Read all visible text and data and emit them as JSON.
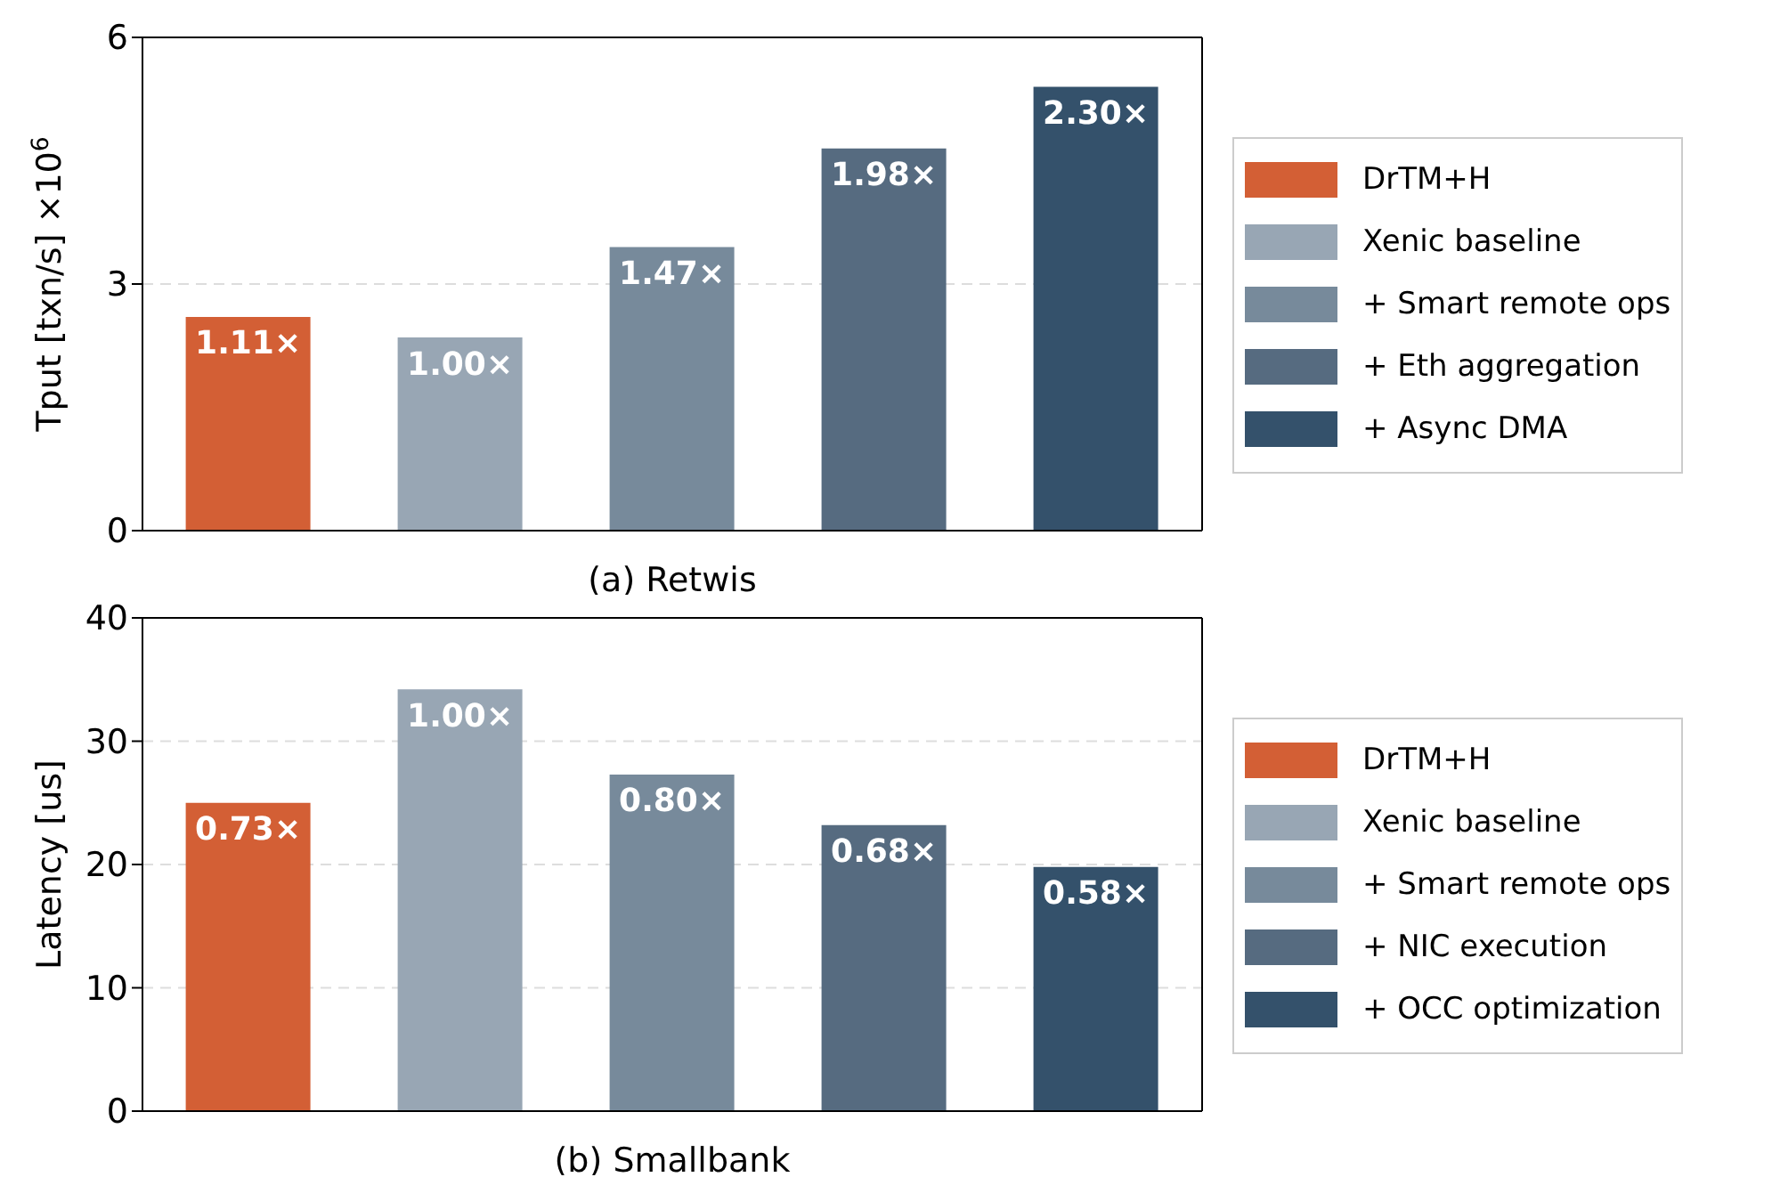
{
  "chart_data": [
    {
      "type": "bar",
      "xlabel": "(a) Retwis",
      "ylabel": "Tput [txn/s] ×10$^{6}$",
      "categories": [
        null,
        null,
        null,
        null,
        null
      ],
      "ylim": [
        0,
        6
      ],
      "yticks": [
        0,
        3,
        6
      ],
      "grid": "y",
      "legend": "right",
      "annotations": [
        "1.11×",
        "1.00×",
        "1.47×",
        "1.98×",
        "2.30×"
      ],
      "series": [
        {
          "name": "DrTM+H",
          "color": "#d35f35",
          "values": [
            2.6,
            null,
            null,
            null,
            null
          ]
        },
        {
          "name": "Xenic baseline",
          "color": "#98a6b4",
          "values": [
            null,
            2.35,
            null,
            null,
            null
          ]
        },
        {
          "name": "+ Smart remote ops",
          "color": "#778a9b",
          "values": [
            null,
            null,
            3.45,
            null,
            null
          ]
        },
        {
          "name": "+ Eth aggregation",
          "color": "#566b80",
          "values": [
            null,
            null,
            null,
            4.65,
            null
          ]
        },
        {
          "name": "+ Async DMA",
          "color": "#34516b",
          "values": [
            null,
            null,
            null,
            null,
            5.4
          ]
        }
      ]
    },
    {
      "type": "bar",
      "xlabel": "(b) Smallbank",
      "ylabel": "Latency [us]",
      "categories": [
        null,
        null,
        null,
        null,
        null
      ],
      "ylim": [
        0,
        40
      ],
      "yticks": [
        0,
        10,
        20,
        30,
        40
      ],
      "grid": "y",
      "legend": "right",
      "annotations": [
        "0.73×",
        "1.00×",
        "0.80×",
        "0.68×",
        "0.58×"
      ],
      "series": [
        {
          "name": "DrTM+H",
          "color": "#d35f35",
          "values": [
            25,
            null,
            null,
            null,
            null
          ]
        },
        {
          "name": "Xenic baseline",
          "color": "#98a6b4",
          "values": [
            null,
            34.2,
            null,
            null,
            null
          ]
        },
        {
          "name": "+ Smart remote ops",
          "color": "#778a9b",
          "values": [
            null,
            null,
            27.3,
            null,
            null
          ]
        },
        {
          "name": "+ NIC execution",
          "color": "#566b80",
          "values": [
            null,
            null,
            null,
            23.2,
            null
          ]
        },
        {
          "name": "+ OCC optimization",
          "color": "#34516b",
          "values": [
            null,
            null,
            null,
            null,
            19.8
          ]
        }
      ]
    }
  ]
}
